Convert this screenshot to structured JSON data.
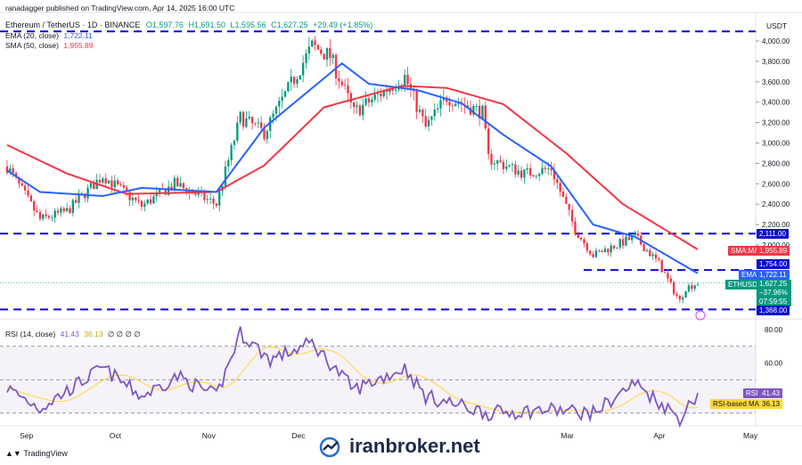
{
  "header": {
    "publisher_line": "ranadagger published on TradingView.com, Apr 14, 2025 16:00 UTC",
    "symbol_line": "Ethereum / TetherUS · 1D · BINANCE",
    "ohlc": {
      "open": "O1,597.76",
      "high": "H1,691.50",
      "low": "L1,595.56",
      "close": "C1,627.25",
      "change": "+29.49 (+1.85%)"
    }
  },
  "legend": {
    "ema": {
      "label": "EMA (20, close)",
      "value": "1,722.11"
    },
    "sma": {
      "label": "SMA (50, close)",
      "value": "1,955.89"
    },
    "rsi": {
      "label": "RSI (14, close)",
      "value": "41.43",
      "ma_value": "36.13",
      "extra": "∅ ∅ ∅ ∅"
    }
  },
  "currency": "USDT",
  "colors": {
    "up": "#089981",
    "down": "#f23645",
    "ema": "#2962ff",
    "sma": "#f23645",
    "rsi": "#7e57c2",
    "rsi_ma": "#fdd835",
    "level": "#0b0bd1"
  },
  "price_tags": {
    "sma": {
      "name": "SMA:MA",
      "value": "1,955.89"
    },
    "ema": {
      "name": "EMA",
      "value": "1,722.11"
    },
    "last": {
      "name": "ETHUSDT",
      "value": "1,627.25",
      "pct": "−37.96%",
      "countdown": "07:59:55"
    }
  },
  "levels": [
    {
      "value": 4094,
      "label": ""
    },
    {
      "value": 2111,
      "label": "2,111.00"
    },
    {
      "value": 1754,
      "label": "1,754.00"
    },
    {
      "value": 1368,
      "label": "1,368.00"
    }
  ],
  "rsi_tags": {
    "rsi": {
      "name": "RSI",
      "value": "41.43"
    },
    "ma": {
      "name": "RSI-based MA",
      "value": "36.13"
    }
  },
  "watermark": "iranbroker.net",
  "tradingview": "TradingView",
  "chart_data": {
    "type": "candlestick",
    "x_labels": [
      "Sep",
      "Oct",
      "Nov",
      "Dec",
      "Mar",
      "Apr",
      "May"
    ],
    "price_axis": {
      "ticks": [
        4000,
        3800,
        3600,
        3400,
        3200,
        3000,
        2800,
        2600,
        2400,
        2200,
        2000
      ],
      "ylim": [
        1300,
        4120
      ]
    },
    "rsi_axis": {
      "ticks": [
        80,
        60
      ],
      "ylim": [
        20,
        85
      ],
      "band": [
        30,
        70
      ]
    },
    "price_keypoints": [
      {
        "date": "2024-08-26",
        "close": 2770
      },
      {
        "date": "2024-09-06",
        "close": 2250
      },
      {
        "date": "2024-09-15",
        "close": 2330
      },
      {
        "date": "2024-09-27",
        "close": 2680
      },
      {
        "date": "2024-10-10",
        "close": 2380
      },
      {
        "date": "2024-10-21",
        "close": 2600
      },
      {
        "date": "2024-11-04",
        "close": 2400
      },
      {
        "date": "2024-11-12",
        "close": 3250
      },
      {
        "date": "2024-11-20",
        "close": 3100
      },
      {
        "date": "2024-12-06",
        "close": 3950
      },
      {
        "date": "2024-12-12",
        "close": 3850
      },
      {
        "date": "2024-12-20",
        "close": 3300
      },
      {
        "date": "2025-01-06",
        "close": 3650
      },
      {
        "date": "2025-01-13",
        "close": 3150
      },
      {
        "date": "2025-01-20",
        "close": 3450
      },
      {
        "date": "2025-02-01",
        "close": 3300
      },
      {
        "date": "2025-02-03",
        "close": 2850
      },
      {
        "date": "2025-02-15",
        "close": 2700
      },
      {
        "date": "2025-02-24",
        "close": 2750
      },
      {
        "date": "2025-03-04",
        "close": 2150
      },
      {
        "date": "2025-03-10",
        "close": 1900
      },
      {
        "date": "2025-03-24",
        "close": 2080
      },
      {
        "date": "2025-04-01",
        "close": 1820
      },
      {
        "date": "2025-04-06",
        "close": 1550
      },
      {
        "date": "2025-04-08",
        "close": 1450
      },
      {
        "date": "2025-04-10",
        "close": 1580
      },
      {
        "date": "2025-04-14",
        "close": 1627
      }
    ],
    "ema20_keypoints": [
      {
        "date": "2024-08-26",
        "value": 2730
      },
      {
        "date": "2024-09-06",
        "value": 2520
      },
      {
        "date": "2024-09-27",
        "value": 2480
      },
      {
        "date": "2024-10-10",
        "value": 2560
      },
      {
        "date": "2024-11-04",
        "value": 2520
      },
      {
        "date": "2024-11-20",
        "value": 3150
      },
      {
        "date": "2024-12-16",
        "value": 3780
      },
      {
        "date": "2024-12-25",
        "value": 3580
      },
      {
        "date": "2025-01-10",
        "value": 3520
      },
      {
        "date": "2025-01-25",
        "value": 3390
      },
      {
        "date": "2025-02-08",
        "value": 3080
      },
      {
        "date": "2025-02-24",
        "value": 2770
      },
      {
        "date": "2025-03-10",
        "value": 2200
      },
      {
        "date": "2025-03-24",
        "value": 2080
      },
      {
        "date": "2025-04-14",
        "value": 1722
      }
    ],
    "sma50_keypoints": [
      {
        "date": "2024-08-26",
        "value": 2980
      },
      {
        "date": "2024-09-15",
        "value": 2700
      },
      {
        "date": "2024-10-05",
        "value": 2500
      },
      {
        "date": "2024-11-04",
        "value": 2520
      },
      {
        "date": "2024-11-20",
        "value": 2780
      },
      {
        "date": "2024-12-10",
        "value": 3350
      },
      {
        "date": "2025-01-05",
        "value": 3560
      },
      {
        "date": "2025-01-20",
        "value": 3540
      },
      {
        "date": "2025-02-08",
        "value": 3380
      },
      {
        "date": "2025-03-01",
        "value": 2900
      },
      {
        "date": "2025-03-20",
        "value": 2400
      },
      {
        "date": "2025-04-14",
        "value": 1956
      }
    ],
    "rsi_keypoints": [
      {
        "date": "2024-08-26",
        "value": 45
      },
      {
        "date": "2024-09-06",
        "value": 33
      },
      {
        "date": "2024-09-27",
        "value": 57
      },
      {
        "date": "2024-10-10",
        "value": 40
      },
      {
        "date": "2024-10-22",
        "value": 52
      },
      {
        "date": "2024-11-04",
        "value": 40
      },
      {
        "date": "2024-11-12",
        "value": 78
      },
      {
        "date": "2024-11-22",
        "value": 62
      },
      {
        "date": "2024-12-06",
        "value": 72
      },
      {
        "date": "2024-12-20",
        "value": 44
      },
      {
        "date": "2025-01-06",
        "value": 57
      },
      {
        "date": "2025-01-13",
        "value": 40
      },
      {
        "date": "2025-02-03",
        "value": 30
      },
      {
        "date": "2025-02-24",
        "value": 32
      },
      {
        "date": "2025-03-10",
        "value": 30
      },
      {
        "date": "2025-03-24",
        "value": 48
      },
      {
        "date": "2025-04-08",
        "value": 27
      },
      {
        "date": "2025-04-14",
        "value": 41.43
      }
    ]
  }
}
